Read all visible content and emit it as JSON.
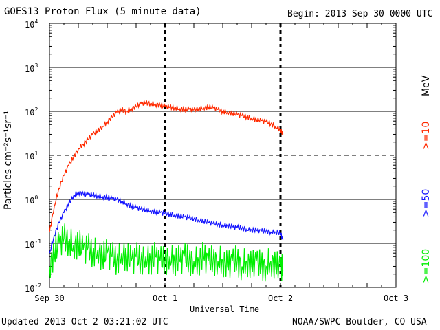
{
  "header": {
    "title": "GOES13 Proton Flux (5 minute data)",
    "begin": "Begin: 2013 Sep 30 0000 UTC"
  },
  "footer": {
    "updated": "Updated 2013 Oct  2 03:21:02 UTC",
    "credit": "NOAA/SWPC Boulder, CO USA"
  },
  "chart_data": {
    "type": "line",
    "xlabel": "Universal Time",
    "ylabel": "Particles cm⁻²s⁻¹sr⁻¹",
    "x_range_hours": [
      0,
      72
    ],
    "x_ticks": [
      {
        "label": "Sep 30",
        "hour": 0
      },
      {
        "label": "Oct 1",
        "hour": 24
      },
      {
        "label": "Oct 2",
        "hour": 48
      },
      {
        "label": "Oct 3",
        "hour": 72
      }
    ],
    "y_scale": "log",
    "y_exponent_range": [
      -2,
      4
    ],
    "y_ticks": [
      {
        "base": "10",
        "exp": "4"
      },
      {
        "base": "10",
        "exp": "3"
      },
      {
        "base": "10",
        "exp": "2"
      },
      {
        "base": "10",
        "exp": "1"
      },
      {
        "base": "10",
        "exp": "0"
      },
      {
        "base": "10",
        "exp": "-1"
      },
      {
        "base": "10",
        "exp": "-2"
      }
    ],
    "dashed_threshold": 10,
    "grid": true,
    "energy_unit": "MeV",
    "series": [
      {
        "name": ">=10",
        "color": "#ff2a00",
        "points": [
          [
            0,
            0.18
          ],
          [
            1,
            0.7
          ],
          [
            2,
            1.8
          ],
          [
            3,
            3.5
          ],
          [
            4,
            6
          ],
          [
            5,
            9
          ],
          [
            6,
            14
          ],
          [
            7,
            18
          ],
          [
            8,
            23
          ],
          [
            9,
            30
          ],
          [
            10,
            36
          ],
          [
            11,
            45
          ],
          [
            12,
            58
          ],
          [
            13,
            75
          ],
          [
            14,
            95
          ],
          [
            15,
            110
          ],
          [
            16,
            100
          ],
          [
            17,
            115
          ],
          [
            18,
            130
          ],
          [
            19,
            150
          ],
          [
            20,
            155
          ],
          [
            21,
            150
          ],
          [
            22,
            145
          ],
          [
            23,
            138
          ],
          [
            24,
            130
          ],
          [
            25,
            125
          ],
          [
            26,
            120
          ],
          [
            27,
            115
          ],
          [
            28,
            110
          ],
          [
            29,
            112
          ],
          [
            30,
            108
          ],
          [
            31,
            115
          ],
          [
            32,
            120
          ],
          [
            33,
            125
          ],
          [
            34,
            120
          ],
          [
            35,
            110
          ],
          [
            36,
            100
          ],
          [
            37,
            95
          ],
          [
            38,
            90
          ],
          [
            39,
            85
          ],
          [
            40,
            80
          ],
          [
            41,
            75
          ],
          [
            42,
            70
          ],
          [
            43,
            65
          ],
          [
            44,
            62
          ],
          [
            45,
            58
          ],
          [
            46,
            52
          ],
          [
            47,
            45
          ],
          [
            48,
            38
          ],
          [
            48.5,
            30
          ]
        ]
      },
      {
        "name": ">=50",
        "color": "#1414ff",
        "points": [
          [
            0,
            0.06
          ],
          [
            1,
            0.15
          ],
          [
            2,
            0.3
          ],
          [
            3,
            0.5
          ],
          [
            4,
            0.8
          ],
          [
            5,
            1.2
          ],
          [
            6,
            1.45
          ],
          [
            7,
            1.35
          ],
          [
            8,
            1.3
          ],
          [
            9,
            1.25
          ],
          [
            10,
            1.2
          ],
          [
            11,
            1.15
          ],
          [
            12,
            1.1
          ],
          [
            13,
            1.05
          ],
          [
            14,
            1.0
          ],
          [
            15,
            0.9
          ],
          [
            16,
            0.8
          ],
          [
            17,
            0.7
          ],
          [
            18,
            0.65
          ],
          [
            19,
            0.6
          ],
          [
            20,
            0.58
          ],
          [
            21,
            0.55
          ],
          [
            22,
            0.52
          ],
          [
            23,
            0.5
          ],
          [
            24,
            0.48
          ],
          [
            25,
            0.46
          ],
          [
            26,
            0.44
          ],
          [
            27,
            0.42
          ],
          [
            28,
            0.4
          ],
          [
            29,
            0.38
          ],
          [
            30,
            0.36
          ],
          [
            31,
            0.34
          ],
          [
            32,
            0.32
          ],
          [
            33,
            0.3
          ],
          [
            34,
            0.28
          ],
          [
            35,
            0.27
          ],
          [
            36,
            0.26
          ],
          [
            37,
            0.25
          ],
          [
            38,
            0.24
          ],
          [
            39,
            0.23
          ],
          [
            40,
            0.22
          ],
          [
            41,
            0.21
          ],
          [
            42,
            0.2
          ],
          [
            43,
            0.2
          ],
          [
            44,
            0.19
          ],
          [
            45,
            0.19
          ],
          [
            46,
            0.18
          ],
          [
            47,
            0.18
          ],
          [
            48,
            0.17
          ],
          [
            48.5,
            0.12
          ]
        ]
      },
      {
        "name": ">=100",
        "color": "#00ee00",
        "points": [
          [
            0,
            0.03
          ],
          [
            1,
            0.06
          ],
          [
            2,
            0.1
          ],
          [
            3,
            0.13
          ],
          [
            4,
            0.11
          ],
          [
            5,
            0.09
          ],
          [
            6,
            0.1
          ],
          [
            7,
            0.07
          ],
          [
            8,
            0.08
          ],
          [
            9,
            0.06
          ],
          [
            10,
            0.07
          ],
          [
            11,
            0.05
          ],
          [
            12,
            0.06
          ],
          [
            13,
            0.05
          ],
          [
            14,
            0.04
          ],
          [
            15,
            0.06
          ],
          [
            16,
            0.05
          ],
          [
            17,
            0.04
          ],
          [
            18,
            0.05
          ],
          [
            19,
            0.04
          ],
          [
            20,
            0.05
          ],
          [
            21,
            0.04
          ],
          [
            22,
            0.05
          ],
          [
            23,
            0.04
          ],
          [
            24,
            0.04
          ],
          [
            25,
            0.05
          ],
          [
            26,
            0.04
          ],
          [
            27,
            0.04
          ],
          [
            28,
            0.05
          ],
          [
            29,
            0.04
          ],
          [
            30,
            0.04
          ],
          [
            31,
            0.04
          ],
          [
            32,
            0.05
          ],
          [
            33,
            0.04
          ],
          [
            34,
            0.04
          ],
          [
            35,
            0.04
          ],
          [
            36,
            0.04
          ],
          [
            37,
            0.03
          ],
          [
            38,
            0.04
          ],
          [
            39,
            0.04
          ],
          [
            40,
            0.03
          ],
          [
            41,
            0.04
          ],
          [
            42,
            0.03
          ],
          [
            43,
            0.04
          ],
          [
            44,
            0.03
          ],
          [
            45,
            0.03
          ],
          [
            46,
            0.04
          ],
          [
            47,
            0.03
          ],
          [
            48,
            0.03
          ],
          [
            48.5,
            0.025
          ]
        ]
      }
    ]
  }
}
